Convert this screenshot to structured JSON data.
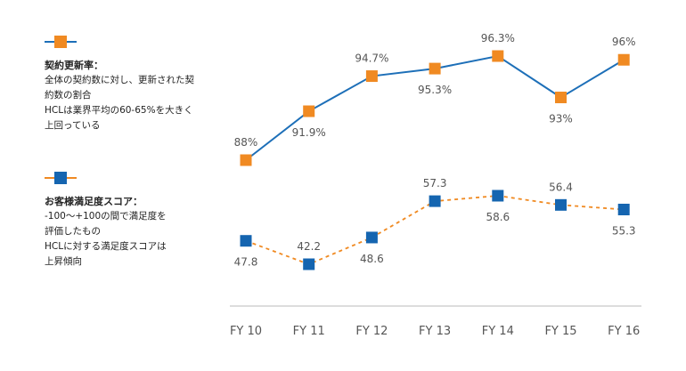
{
  "legend": {
    "renewal": {
      "title": "契約更新率：",
      "description": "全体の契約数に対し、更新された契\n約数の割合\nHCLは業界平均の60-65%を大きく\n上回っている"
    },
    "satisfaction": {
      "title": "お客様満足度スコア：",
      "description": "-100～+100の間で満足度を\n評価したもの\nHCLに対する満足度スコアは\n上昇傾向"
    }
  },
  "colors": {
    "renewal_marker": "#f08a22",
    "renewal_line": "#1d6fb8",
    "satisfaction_marker": "#1565b0",
    "satisfaction_line": "#f08a22",
    "axis": "#bbbbbb"
  },
  "chart_data": {
    "type": "line",
    "categories": [
      "FY 10",
      "FY 11",
      "FY 12",
      "FY 13",
      "FY 14",
      "FY 15",
      "FY 16"
    ],
    "series": [
      {
        "name": "契約更新率",
        "values": [
          88,
          91.9,
          94.7,
          95.3,
          96.3,
          93,
          96
        ],
        "labels": [
          "88%",
          "91.9%",
          "94.7%",
          "95.3%",
          "96.3%",
          "93%",
          "96%"
        ],
        "line_style": "solid",
        "marker": "square"
      },
      {
        "name": "お客様満足度スコア",
        "values": [
          47.8,
          42.2,
          48.6,
          57.3,
          58.6,
          56.4,
          55.3
        ],
        "labels": [
          "47.8",
          "42.2",
          "48.6",
          "57.3",
          "58.6",
          "56.4",
          "55.3"
        ],
        "line_style": "dashed",
        "marker": "square"
      }
    ],
    "grid": false
  }
}
